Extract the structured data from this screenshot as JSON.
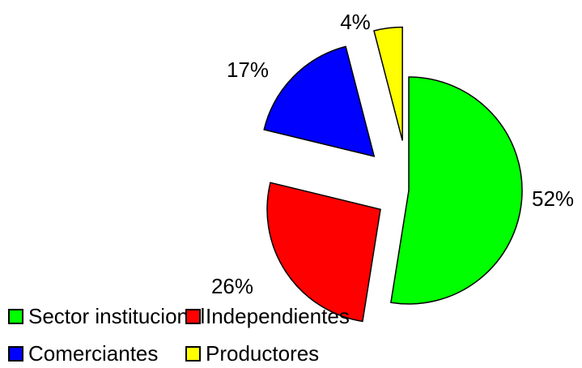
{
  "chart_data": {
    "type": "pie",
    "title": "",
    "slices": [
      {
        "name": "Sector institucional",
        "label": "52%",
        "value": 52,
        "color": "#00ff00"
      },
      {
        "name": "Independientes",
        "label": "26%",
        "value": 26,
        "color": "#ff0000"
      },
      {
        "name": "Comerciantes",
        "label": "17%",
        "value": 17,
        "color": "#0000ff"
      },
      {
        "name": "Productores",
        "label": "4%",
        "value": 4,
        "color": "#ffff00"
      }
    ],
    "legend_position": "bottom"
  }
}
